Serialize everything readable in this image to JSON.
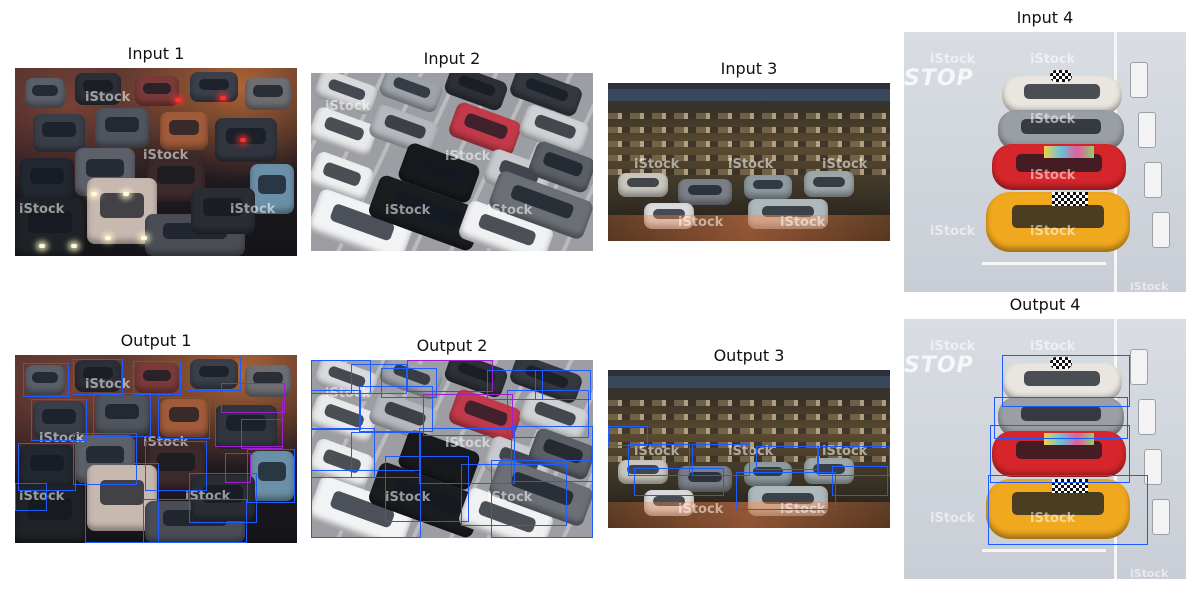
{
  "panels": {
    "input1": {
      "title": "Input 1"
    },
    "input2": {
      "title": "Input 2"
    },
    "input3": {
      "title": "Input 3"
    },
    "input4": {
      "title": "Input 4"
    },
    "output1": {
      "title": "Output 1"
    },
    "output2": {
      "title": "Output 2"
    },
    "output3": {
      "title": "Output 3"
    },
    "output4": {
      "title": "Output 4"
    }
  },
  "watermark": "iStock",
  "road_marking": "STOP",
  "colors": {
    "detection_box": "#1f5cff",
    "detection_box_alt": "#a020d0",
    "background": "#ffffff"
  }
}
